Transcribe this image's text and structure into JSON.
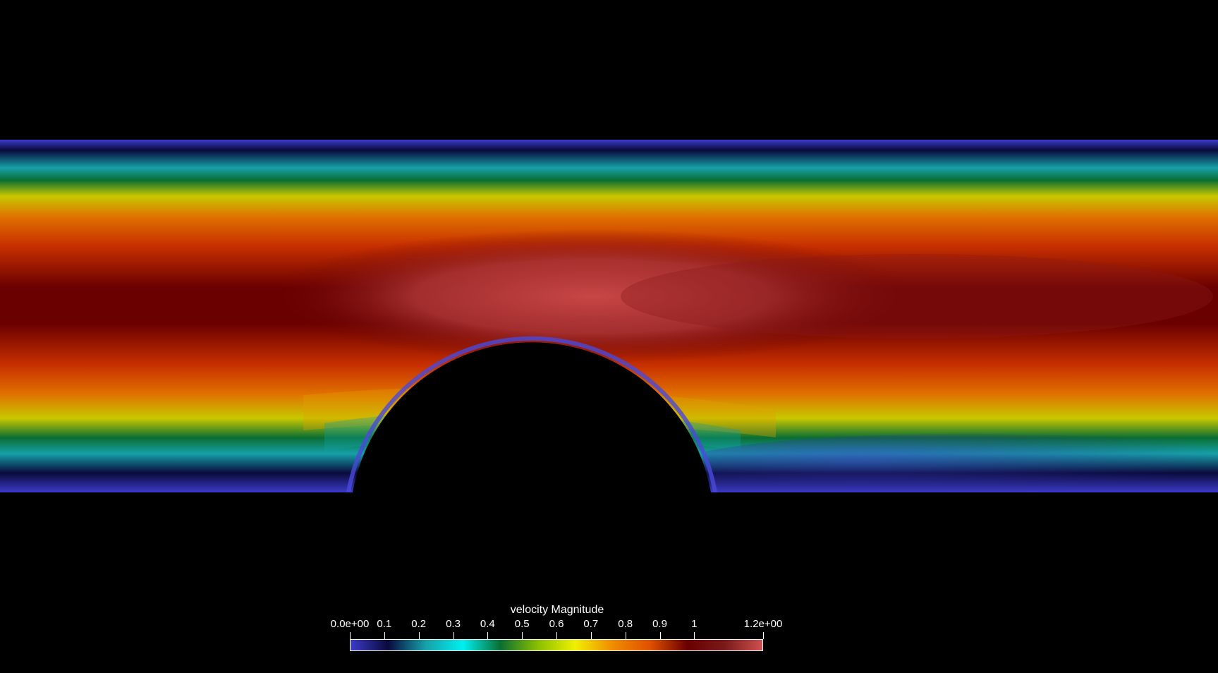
{
  "scene": {
    "background": "#000000",
    "field": "velocity Magnitude"
  },
  "colorbar": {
    "title": "velocity Magnitude",
    "range": [
      0.0,
      1.2
    ],
    "ticks": [
      {
        "label": "0.0e+00",
        "value": 0.0
      },
      {
        "label": "0.1",
        "value": 0.1
      },
      {
        "label": "0.2",
        "value": 0.2
      },
      {
        "label": "0.3",
        "value": 0.3
      },
      {
        "label": "0.4",
        "value": 0.4
      },
      {
        "label": "0.5",
        "value": 0.5
      },
      {
        "label": "0.6",
        "value": 0.6
      },
      {
        "label": "0.7",
        "value": 0.7
      },
      {
        "label": "0.8",
        "value": 0.8
      },
      {
        "label": "0.9",
        "value": 0.9
      },
      {
        "label": "1",
        "value": 1.0
      },
      {
        "label": "1.2e+00",
        "value": 1.2
      }
    ],
    "colormap": [
      "#3b3bc8",
      "#0a0a3c",
      "#16a0a8",
      "#00f0f0",
      "#0a6e32",
      "#8ac000",
      "#f0f000",
      "#f08c00",
      "#e05000",
      "#6a0000",
      "#7a1a1a",
      "#d05050"
    ]
  }
}
